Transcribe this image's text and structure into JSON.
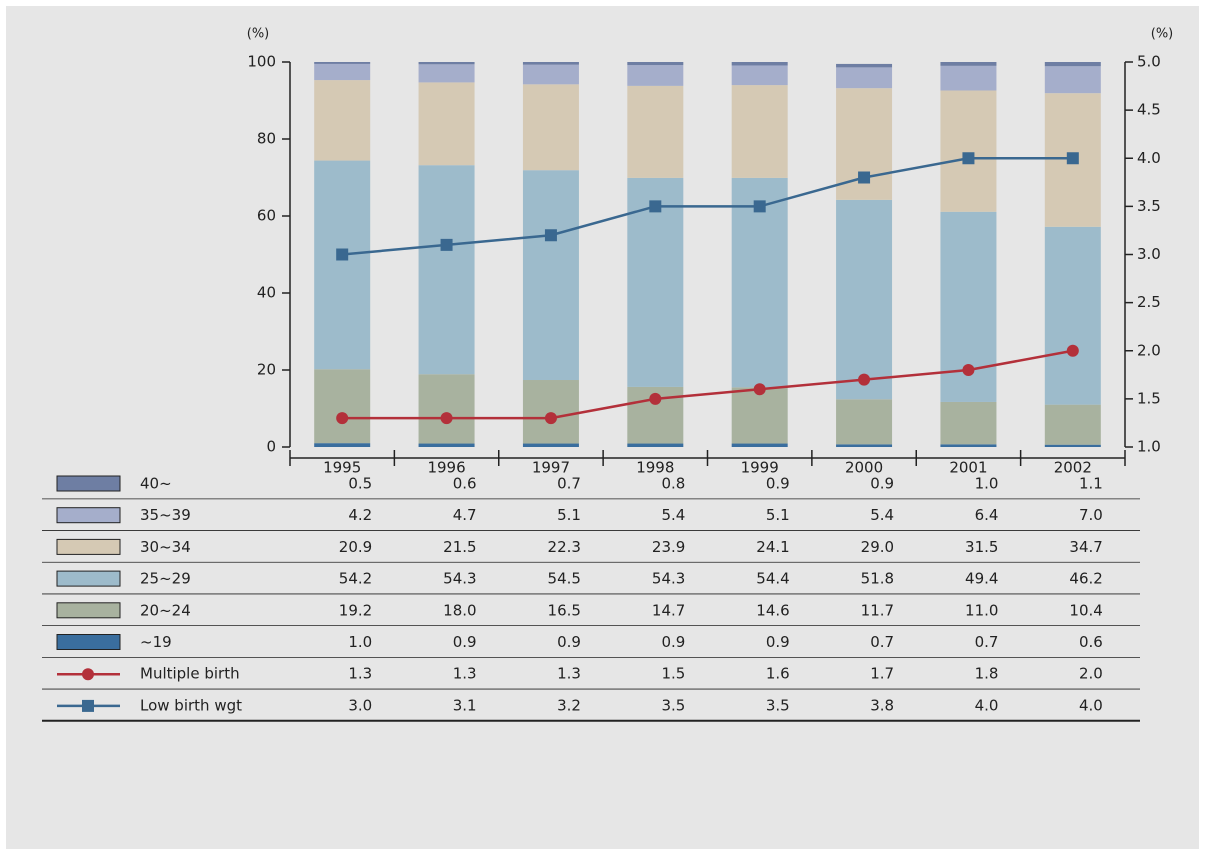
{
  "chart_data": {
    "type": "bar",
    "stacked": true,
    "ylabel": "(%)",
    "y2label": "(%)",
    "categories": [
      "1995",
      "1996",
      "1997",
      "1998",
      "1999",
      "2000",
      "2001",
      "2002"
    ],
    "ylim": [
      0,
      100
    ],
    "yticks": [
      0,
      20,
      40,
      60,
      80,
      100
    ],
    "y2lim": [
      1,
      5
    ],
    "y2ticks": [
      {
        "value": 1,
        "label": "1.0"
      },
      {
        "value": 1.5,
        "label": "1.5"
      },
      {
        "value": 2,
        "label": "2.0"
      },
      {
        "value": 2.5,
        "label": "2.5"
      },
      {
        "value": 3,
        "label": "3.0"
      },
      {
        "value": 3.5,
        "label": "3.5"
      },
      {
        "value": 4,
        "label": "4.0"
      },
      {
        "value": 4.5,
        "label": "4.5"
      },
      {
        "value": 5,
        "label": "5.0"
      }
    ],
    "series": [
      {
        "name": "40~",
        "color": "#6e7ea3",
        "values": [
          0.5,
          0.6,
          0.7,
          0.8,
          0.9,
          0.9,
          1,
          1.1
        ],
        "value_labels": [
          "0.5",
          "0.6",
          "0.7",
          "0.8",
          "0.9",
          "0.9",
          "1.0",
          "1.1"
        ]
      },
      {
        "name": "35~39",
        "color": "#a5aecb",
        "values": [
          4.2,
          4.7,
          5.1,
          5.4,
          5.1,
          5.4,
          6.4,
          7
        ],
        "value_labels": [
          "4.2",
          "4.7",
          "5.1",
          "5.4",
          "5.1",
          "5.4",
          "6.4",
          "7.0"
        ]
      },
      {
        "name": "30~34",
        "color": "#d5c9b4",
        "values": [
          20.9,
          21.5,
          22.3,
          23.9,
          24.1,
          29,
          31.5,
          34.7
        ],
        "value_labels": [
          "20.9",
          "21.5",
          "22.3",
          "23.9",
          "24.1",
          "29.0",
          "31.5",
          "34.7"
        ]
      },
      {
        "name": "25~29",
        "color": "#9dbbcb",
        "values": [
          54.2,
          54.3,
          54.5,
          54.3,
          54.4,
          51.8,
          49.4,
          46.2
        ],
        "value_labels": [
          "54.2",
          "54.3",
          "54.5",
          "54.3",
          "54.4",
          "51.8",
          "49.4",
          "46.2"
        ]
      },
      {
        "name": "20~24",
        "color": "#a8b29f",
        "values": [
          19.2,
          18,
          16.5,
          14.7,
          14.6,
          11.7,
          11,
          10.4
        ],
        "value_labels": [
          "19.2",
          "18.0",
          "16.5",
          "14.7",
          "14.6",
          "11.7",
          "11.0",
          "10.4"
        ]
      },
      {
        "name": "~19",
        "color": "#3a6e9e",
        "values": [
          1,
          0.9,
          0.9,
          0.9,
          0.9,
          0.7,
          0.7,
          0.6
        ],
        "value_labels": [
          "1.0",
          "0.9",
          "0.9",
          "0.9",
          "0.9",
          "0.7",
          "0.7",
          "0.6"
        ]
      },
      {
        "name": "Multiple birth",
        "color": "#b3303a",
        "type": "line",
        "marker": "circle",
        "axis": "y2",
        "values": [
          1.3,
          1.3,
          1.3,
          1.5,
          1.6,
          1.7,
          1.8,
          2
        ],
        "value_labels": [
          "1.3",
          "1.3",
          "1.3",
          "1.5",
          "1.6",
          "1.7",
          "1.8",
          "2.0"
        ]
      },
      {
        "name": "Low birth wgt",
        "color": "#3a6890",
        "type": "line",
        "marker": "square",
        "axis": "y2",
        "values": [
          3,
          3.1,
          3.2,
          3.5,
          3.5,
          3.8,
          4,
          4
        ],
        "value_labels": [
          "3.0",
          "3.1",
          "3.2",
          "3.5",
          "3.5",
          "3.8",
          "4.0",
          "4.0"
        ]
      }
    ]
  }
}
